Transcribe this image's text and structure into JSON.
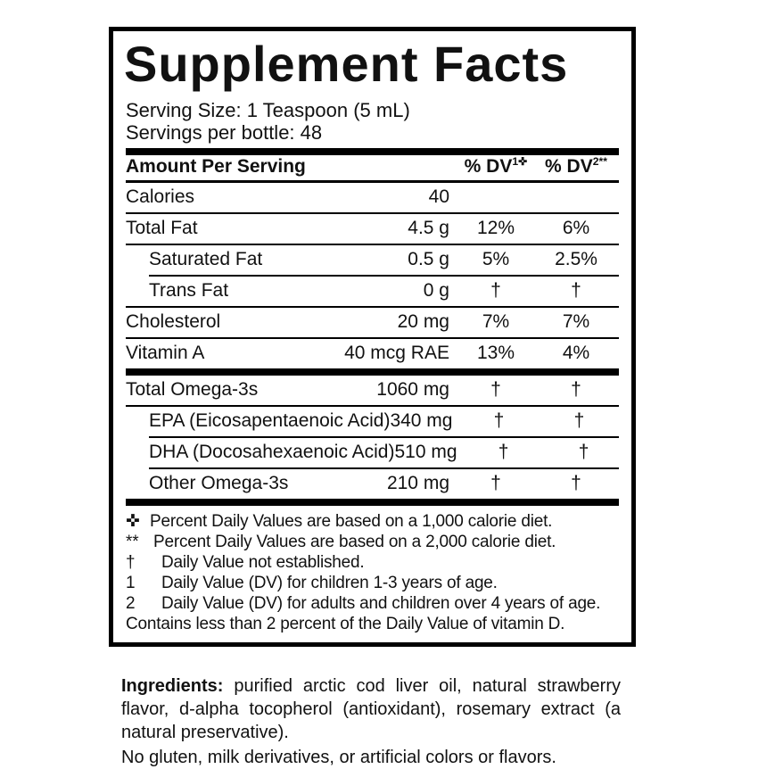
{
  "label": {
    "title": "Supplement Facts",
    "serving_size": "Serving Size: 1 Teaspoon (5 mL)",
    "servings_per_bottle": "Servings per bottle: 48",
    "table": {
      "header": {
        "amount_label": "Amount Per Serving",
        "dv1_base": "% DV",
        "dv1_sup": "1✜",
        "dv2_base": "% DV",
        "dv2_sup": "2**"
      },
      "rows": [
        {
          "name": "Calories",
          "amount": "40",
          "dv1": "",
          "dv2": "",
          "indent": false,
          "separator": "thin"
        },
        {
          "name": "Total Fat",
          "amount": "4.5 g",
          "dv1": "12%",
          "dv2": "6%",
          "indent": false,
          "separator": "thin"
        },
        {
          "name": "Saturated Fat",
          "amount": "0.5 g",
          "dv1": "5%",
          "dv2": "2.5%",
          "indent": true,
          "separator": "thin-indent"
        },
        {
          "name": "Trans Fat",
          "amount": "0 g",
          "dv1": "†",
          "dv2": "†",
          "indent": true,
          "separator": "thin"
        },
        {
          "name": "Cholesterol",
          "amount": "20 mg",
          "dv1": "7%",
          "dv2": "7%",
          "indent": false,
          "separator": "thin"
        },
        {
          "name": "Vitamin A",
          "amount": "40 mcg RAE",
          "dv1": "13%",
          "dv2": "4%",
          "indent": false,
          "separator": "thick"
        },
        {
          "name": "Total Omega-3s",
          "amount": "1060 mg",
          "dv1": "†",
          "dv2": "†",
          "indent": false,
          "separator": "thin"
        },
        {
          "name": "EPA (Eicosapentaenoic Acid)",
          "amount": "340 mg",
          "dv1": "†",
          "dv2": "†",
          "indent": true,
          "separator": "thin-indent"
        },
        {
          "name": "DHA (Docosahexaenoic Acid)",
          "amount": "510 mg",
          "dv1": "†",
          "dv2": "†",
          "indent": true,
          "separator": "thin-indent"
        },
        {
          "name": "Other Omega-3s",
          "amount": "210 mg",
          "dv1": "†",
          "dv2": "†",
          "indent": true,
          "separator": "thick"
        }
      ]
    },
    "footnotes": [
      {
        "marker": "✜",
        "text": "Percent Daily Values are based on a 1,000 calorie diet."
      },
      {
        "marker": "**",
        "text": "Percent Daily Values are based on a 2,000 calorie diet."
      },
      {
        "marker": "†",
        "text": "Daily Value not established."
      },
      {
        "marker": "1",
        "text": "Daily Value (DV) for children 1-3 years of age."
      },
      {
        "marker": "2",
        "text": "Daily Value (DV) for adults and children over 4 years of age."
      },
      {
        "marker": "",
        "text": "Contains less than 2 percent of the Daily Value of vitamin D."
      }
    ],
    "ingredients_label": "Ingredients:",
    "ingredients_text": "purified arctic cod liver oil, natural strawberry flavor, d-alpha tocopherol (antioxidant), rosemary extract (a natural preservative).",
    "allergen_text": "No gluten, milk derivatives, or artificial colors or flavors.",
    "colors": {
      "text": "#111111",
      "border": "#000000",
      "background": "#ffffff"
    }
  }
}
